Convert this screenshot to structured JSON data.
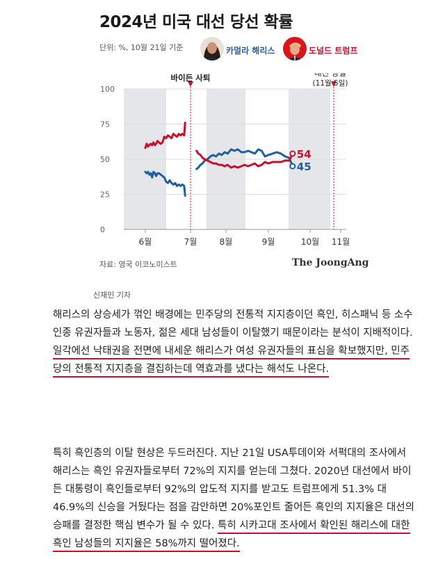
{
  "header": {
    "title": "2024년 미국 대선 당선 확률",
    "unit_note": "단위: %, 10월 21일 기준"
  },
  "legend": [
    {
      "name": "카멀라 해리스",
      "color": "#1f5f9e"
    },
    {
      "name": "도널드 트럼프",
      "color": "#c8102e"
    }
  ],
  "chart_data": {
    "type": "line",
    "ylim": [
      0,
      100
    ],
    "yticks": [
      0,
      25,
      50,
      75,
      100
    ],
    "xlabels": [
      "6월",
      "7월",
      "8월",
      "9월",
      "10월",
      "11월"
    ],
    "annotations": [
      {
        "label": "바이든 사퇴",
        "color": "#c8102e"
      },
      {
        "label": "대선 당일",
        "sub": "(11월 5일)",
        "color": "#c8102e"
      }
    ],
    "series": [
      {
        "name": "카멀라 해리스",
        "color": "#1f5f9e",
        "segments": [
          [
            [
              0,
              41
            ],
            [
              0.03,
              40
            ],
            [
              0.06,
              41
            ],
            [
              0.09,
              39
            ],
            [
              0.12,
              40
            ],
            [
              0.15,
              37
            ],
            [
              0.18,
              41
            ],
            [
              0.21,
              40
            ],
            [
              0.24,
              38
            ],
            [
              0.27,
              40
            ],
            [
              0.3,
              40
            ],
            [
              0.34,
              39
            ],
            [
              0.38,
              38
            ],
            [
              0.42,
              37
            ],
            [
              0.46,
              34
            ],
            [
              0.5,
              33
            ],
            [
              0.54,
              35
            ],
            [
              0.58,
              33
            ],
            [
              0.62,
              32
            ],
            [
              0.66,
              33
            ],
            [
              0.7,
              31
            ],
            [
              0.74,
              32
            ],
            [
              0.78,
              31
            ],
            [
              0.82,
              32
            ],
            [
              0.86,
              31
            ],
            [
              0.88,
              24
            ]
          ],
          [
            [
              1.17,
              43
            ],
            [
              1.22,
              44
            ],
            [
              1.28,
              46
            ],
            [
              1.34,
              47
            ],
            [
              1.4,
              49
            ],
            [
              1.48,
              50
            ],
            [
              1.56,
              52
            ],
            [
              1.64,
              53
            ],
            [
              1.72,
              52
            ],
            [
              1.8,
              54
            ],
            [
              1.88,
              53
            ],
            [
              1.96,
              55
            ],
            [
              2.04,
              54
            ],
            [
              2.12,
              57
            ],
            [
              2.2,
              56
            ],
            [
              2.28,
              57
            ],
            [
              2.36,
              55
            ],
            [
              2.44,
              55
            ],
            [
              2.52,
              56
            ],
            [
              2.6,
              55
            ],
            [
              2.68,
              54
            ],
            [
              2.76,
              57
            ],
            [
              2.84,
              56
            ],
            [
              2.92,
              52
            ],
            [
              3.0,
              53
            ],
            [
              3.1,
              54
            ],
            [
              3.2,
              55
            ],
            [
              3.3,
              54
            ],
            [
              3.4,
              52
            ],
            [
              3.5,
              51
            ],
            [
              3.58,
              45
            ]
          ]
        ],
        "end_label": "45"
      },
      {
        "name": "도널드 트럼프",
        "color": "#c8102e",
        "segments": [
          [
            [
              0,
              58
            ],
            [
              0.03,
              61
            ],
            [
              0.06,
              59
            ],
            [
              0.09,
              60
            ],
            [
              0.12,
              61
            ],
            [
              0.15,
              60
            ],
            [
              0.18,
              62
            ],
            [
              0.21,
              60
            ],
            [
              0.24,
              61
            ],
            [
              0.27,
              63
            ],
            [
              0.3,
              62
            ],
            [
              0.34,
              61
            ],
            [
              0.38,
              62
            ],
            [
              0.42,
              66
            ],
            [
              0.46,
              65
            ],
            [
              0.5,
              67
            ],
            [
              0.54,
              66
            ],
            [
              0.58,
              65
            ],
            [
              0.62,
              68
            ],
            [
              0.66,
              67
            ],
            [
              0.7,
              66
            ],
            [
              0.74,
              68
            ],
            [
              0.78,
              67
            ],
            [
              0.82,
              68
            ],
            [
              0.86,
              67
            ],
            [
              0.88,
              76
            ]
          ],
          [
            [
              1.17,
              56
            ],
            [
              1.22,
              54
            ],
            [
              1.28,
              53
            ],
            [
              1.34,
              51
            ],
            [
              1.4,
              50
            ],
            [
              1.48,
              49
            ],
            [
              1.56,
              48
            ],
            [
              1.64,
              47
            ],
            [
              1.72,
              47
            ],
            [
              1.8,
              46
            ],
            [
              1.88,
              46
            ],
            [
              1.96,
              45
            ],
            [
              2.04,
              46
            ],
            [
              2.12,
              44
            ],
            [
              2.2,
              45
            ],
            [
              2.28,
              44
            ],
            [
              2.36,
              45
            ],
            [
              2.44,
              46
            ],
            [
              2.52,
              45
            ],
            [
              2.6,
              46
            ],
            [
              2.68,
              47
            ],
            [
              2.76,
              45
            ],
            [
              2.84,
              46
            ],
            [
              2.92,
              48
            ],
            [
              3.0,
              47
            ],
            [
              3.1,
              48
            ],
            [
              3.2,
              48
            ],
            [
              3.3,
              48
            ],
            [
              3.4,
              49
            ],
            [
              3.5,
              49
            ],
            [
              3.58,
              54
            ]
          ]
        ],
        "end_label": "54"
      }
    ]
  },
  "footer": {
    "source": "자료: 영국 이코노미스트",
    "logo": "The JoongAng",
    "reporter": "신재민 기자"
  },
  "article": {
    "p1": {
      "a": "해리스의 상승세가 꺾인 배경에는 민주당의 전통적 지지층이던 흑인, 히스패닉 등 소수인종 유권자들과 노동자, 젊은 세대 남성들이 이탈했기 때문이라는 분석이 지배적이다. ",
      "b": "일각에선 낙태권을 전면에 내세운 해리스가 여성 유권자들의 표심을 확보했지만, 민주당의 전통적 지지층을 결집하는데 역효과를 냈다는 해석도 나온다."
    },
    "p2": {
      "a": "특히 흑인층의 이탈 현상은 두드러진다. 지난 21일 USA투데이와 서퍽대의 조사에서 해리스는 흑인 유권자들로부터 72%의 지지를 얻는데 그쳤다. 2020년 대선에서 바이든 대통령이 흑인들로부터 92%의 압도적 지지를 받고도 트럼프에게 51.3% 대 46.9%의 신승을 거뒀다는 점을 감안하면 20%포인트 줄어든 흑인의 지지율은 대선의 승패를 결정한 핵심 변수가 될 수 있다. ",
      "b": "특히 시카고대 조사에서 확인된 해리스에 대한 흑인 남성들의 지지율은 58%까지 떨어졌다."
    }
  }
}
